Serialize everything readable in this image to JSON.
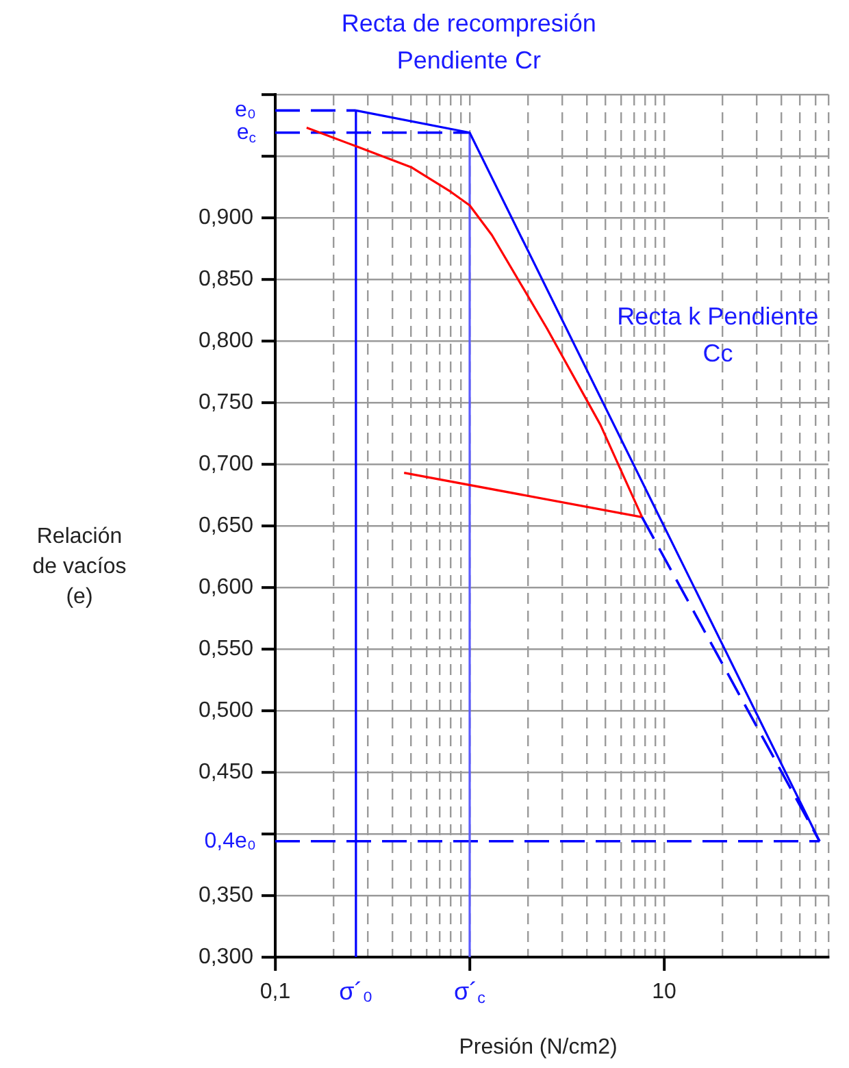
{
  "chart_data": {
    "type": "line",
    "xlabel": "Presión (N/cm2)",
    "ylabel": "Relación de vacíos (e)",
    "log": "x",
    "grid": true,
    "legend": false,
    "xlim": [
      0.1,
      70
    ],
    "xticks": [
      {
        "value": 0.1,
        "label": "0,1"
      },
      {
        "value": 0.2,
        "label": null
      },
      {
        "value": 0.3,
        "label": null
      },
      {
        "value": 0.4,
        "label": null
      },
      {
        "value": 0.5,
        "label": null
      },
      {
        "value": 0.6,
        "label": null
      },
      {
        "value": 0.7,
        "label": null
      },
      {
        "value": 0.8,
        "label": null
      },
      {
        "value": 0.9,
        "label": null
      },
      {
        "value": 1,
        "label": null
      },
      {
        "value": 2,
        "label": null
      },
      {
        "value": 3,
        "label": null
      },
      {
        "value": 4,
        "label": null
      },
      {
        "value": 5,
        "label": null
      },
      {
        "value": 6,
        "label": null
      },
      {
        "value": 7,
        "label": null
      },
      {
        "value": 8,
        "label": null
      },
      {
        "value": 9,
        "label": null
      },
      {
        "value": 10,
        "label": "10"
      },
      {
        "value": 20,
        "label": null
      },
      {
        "value": 30,
        "label": null
      },
      {
        "value": 40,
        "label": null
      },
      {
        "value": 50,
        "label": null
      },
      {
        "value": 60,
        "label": null
      },
      {
        "value": 70,
        "label": null
      }
    ],
    "ylim": [
      0.3,
      1.0
    ],
    "yticks": [
      {
        "value": 0.3,
        "label": "0,300"
      },
      {
        "value": 0.35,
        "label": "0,350"
      },
      {
        "value": 0.4,
        "label": null
      },
      {
        "value": 0.45,
        "label": "0,450"
      },
      {
        "value": 0.5,
        "label": "0,500"
      },
      {
        "value": 0.55,
        "label": "0,550"
      },
      {
        "value": 0.6,
        "label": "0,600"
      },
      {
        "value": 0.65,
        "label": "0,650"
      },
      {
        "value": 0.7,
        "label": "0,700"
      },
      {
        "value": 0.75,
        "label": "0,750"
      },
      {
        "value": 0.8,
        "label": "0,800"
      },
      {
        "value": 0.85,
        "label": "0,850"
      },
      {
        "value": 0.9,
        "label": "0,900"
      },
      {
        "value": 0.95,
        "label": null
      },
      {
        "value": 1.0,
        "label": null
      }
    ],
    "series": [
      {
        "color": "#0000ff",
        "line_style": "solid",
        "x": [
          0.26,
          1.0,
          63
        ],
        "values": [
          0.987,
          0.969,
          0.394
        ]
      },
      {
        "color": "#0000ff",
        "line_style": "dashed",
        "x": [
          7.7,
          63
        ],
        "values": [
          0.657,
          0.394
        ]
      },
      {
        "color": "#ff0000",
        "line_style": "solid",
        "x": [
          0.145,
          0.26,
          0.5,
          0.8,
          1.0,
          1.3,
          2.5,
          4.7,
          7.7
        ],
        "values": [
          0.973,
          0.958,
          0.941,
          0.921,
          0.91,
          0.886,
          0.81,
          0.732,
          0.657
        ]
      },
      {
        "color": "#ff0000",
        "line_style": "solid",
        "x": [
          7.7,
          0.46
        ],
        "values": [
          0.657,
          0.693
        ]
      },
      {
        "color": "#0000ff",
        "line_style": "solid",
        "x": [
          0.26,
          0.26
        ],
        "values": [
          0.3,
          0.987
        ]
      },
      {
        "color": "#5a5aff",
        "line_style": "solid",
        "x": [
          1.0,
          1.0
        ],
        "values": [
          0.3,
          0.969
        ]
      },
      {
        "color": "#0000ff",
        "line_style": "dashed",
        "x": [
          0.1,
          0.26
        ],
        "values": [
          0.987,
          0.987
        ]
      },
      {
        "color": "#0000ff",
        "line_style": "dashed",
        "x": [
          0.1,
          1.0
        ],
        "values": [
          0.969,
          0.969
        ]
      },
      {
        "color": "#0000ff",
        "line_style": "dashed",
        "x": [
          0.1,
          63
        ],
        "values": [
          0.394,
          0.394
        ]
      }
    ],
    "annotations": [
      "Recta de recompresión Pendiente Cr",
      "Recta k Pendiente Cc",
      {
        "text": "e₀",
        "x": 0.1,
        "y": 0.987
      },
      {
        "text": "e$_{c}$",
        "x": 0.1,
        "y": 0.969
      },
      {
        "text": "0,4e₀",
        "x": 0.1,
        "y": 0.394
      },
      {
        "text": "σ´₀",
        "x": 0.26,
        "y": 0.3
      },
      {
        "text": "σ´$_{c}$",
        "x": 1.0,
        "y": 0.3
      }
    ]
  }
}
